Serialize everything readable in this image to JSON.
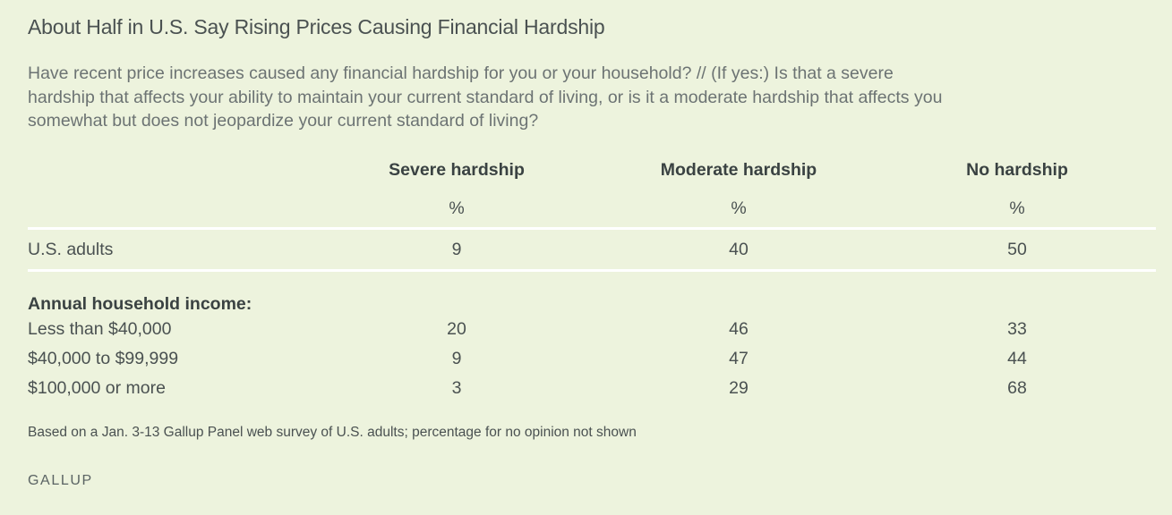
{
  "title": "About Half in U.S. Say Rising Prices Causing Financial Hardship",
  "subtitle": "Have recent price increases caused any financial hardship for you or your household? // (If yes:) Is that a severe hardship that affects your ability to maintain your current standard of living, or is it a moderate hardship that affects you somewhat but does not jeopardize your current standard of living?",
  "chart_data": {
    "type": "table",
    "columns": [
      "Severe hardship",
      "Moderate hardship",
      "No hardship"
    ],
    "units": [
      "%",
      "%",
      "%"
    ],
    "rows": [
      {
        "label": "U.S. adults",
        "values": [
          "9",
          "40",
          "50"
        ]
      }
    ],
    "group_label": "Annual household income:",
    "group_rows": [
      {
        "label": "Less than $40,000",
        "values": [
          "20",
          "46",
          "33"
        ]
      },
      {
        "label": "$40,000 to $99,999",
        "values": [
          "9",
          "47",
          "44"
        ]
      },
      {
        "label": "$100,000 or more",
        "values": [
          "3",
          "29",
          "68"
        ]
      }
    ]
  },
  "note": "Based on a Jan. 3-13 Gallup Panel web survey of U.S. adults; percentage for no opinion not shown",
  "brand": "GALLUP"
}
